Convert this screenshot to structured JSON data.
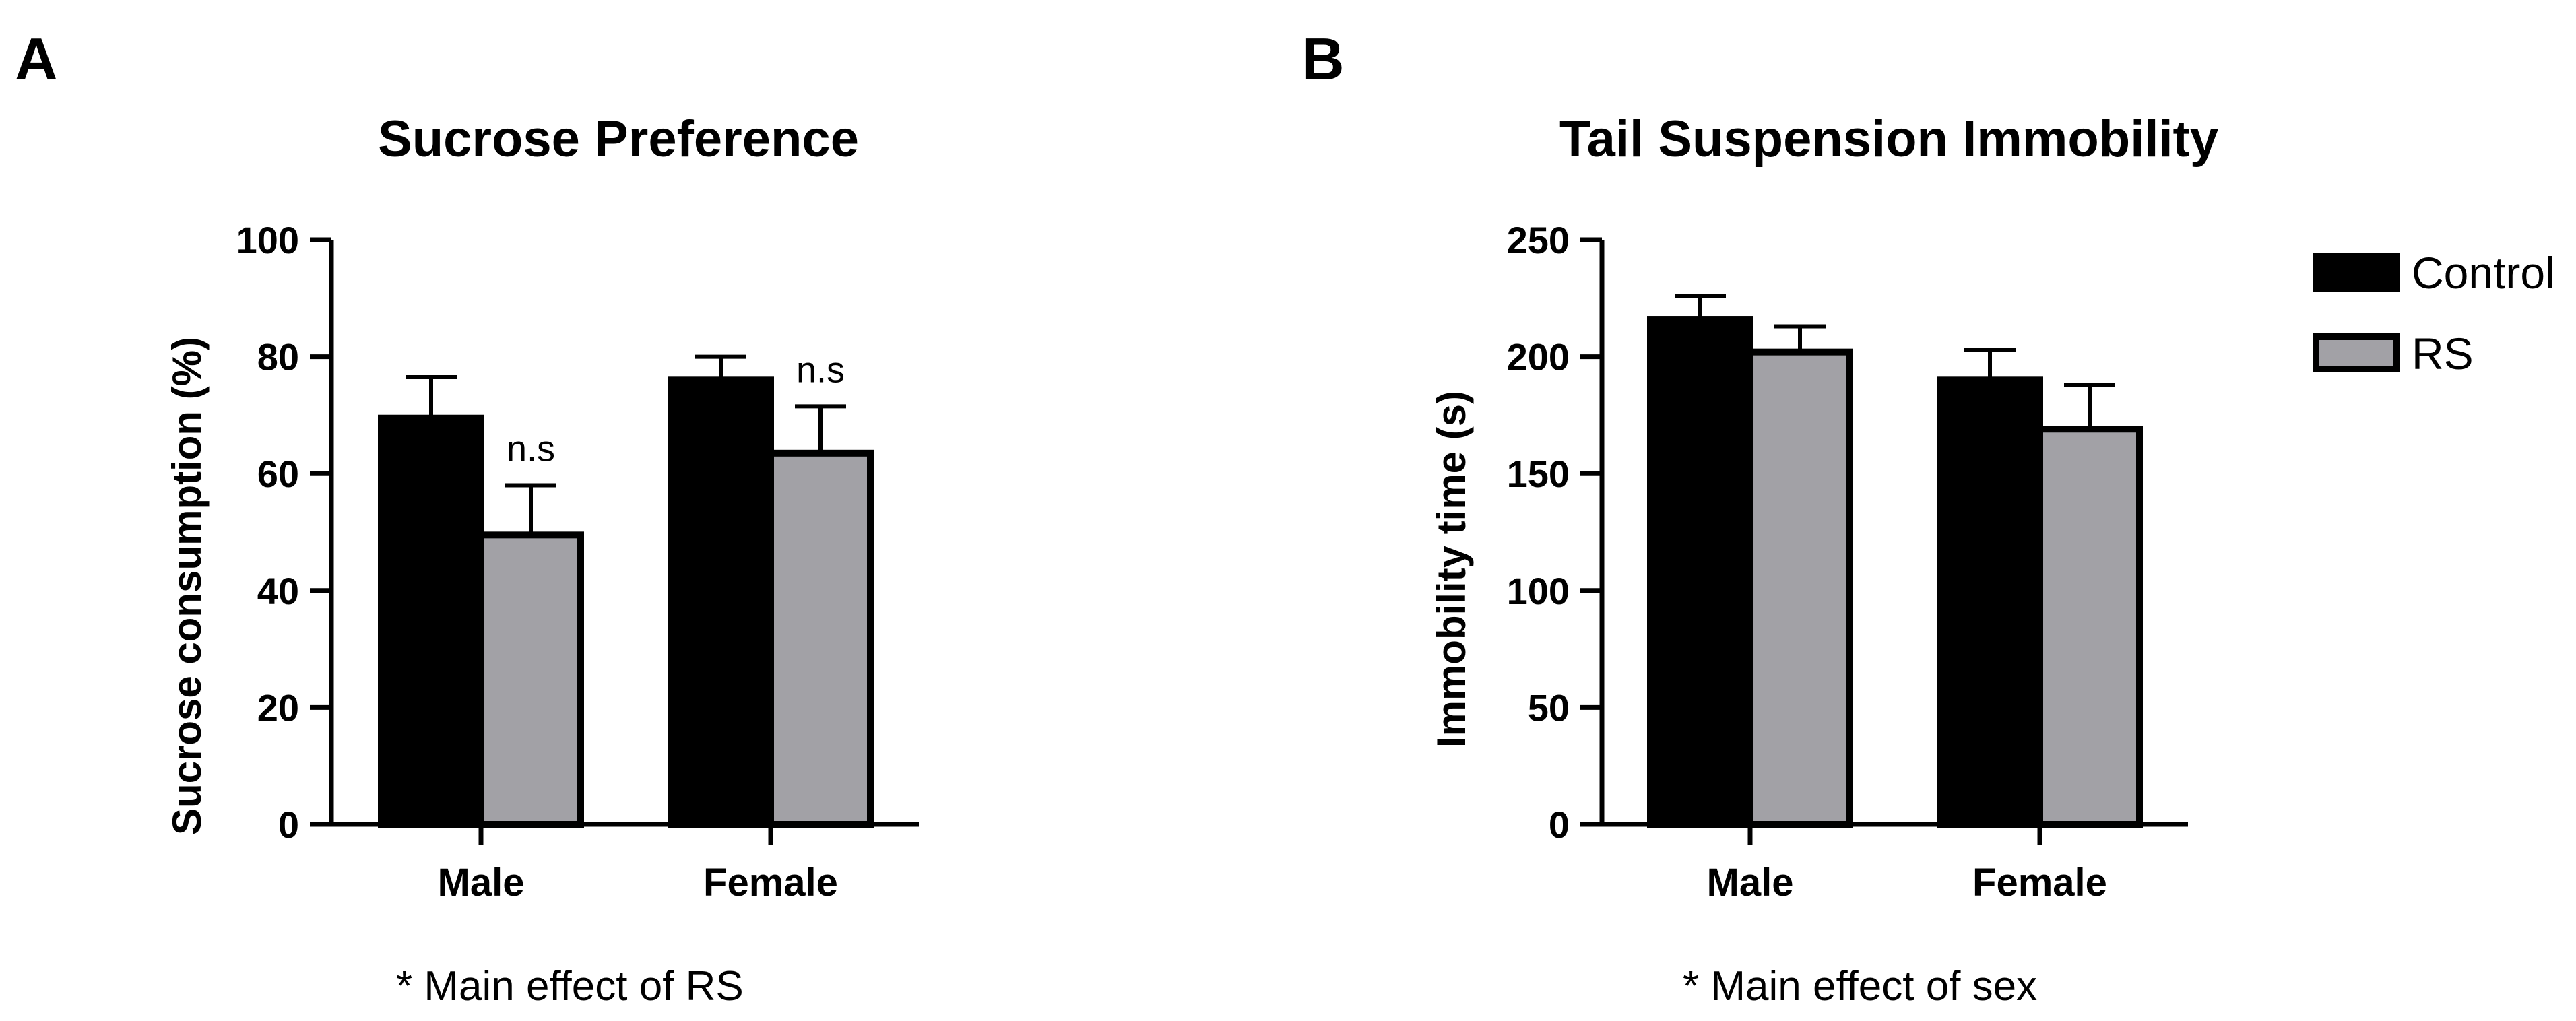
{
  "legend": {
    "items": [
      {
        "label": "Control",
        "color": "#000000"
      },
      {
        "label": "RS",
        "color": "#a2a1a6"
      }
    ]
  },
  "chart_data": [
    {
      "panel": "A",
      "type": "bar",
      "title": "Sucrose Preference",
      "xlabel": "",
      "ylabel": "Sucrose consumption (%)",
      "ylim": [
        0,
        100
      ],
      "yticks": [
        0,
        20,
        40,
        60,
        80,
        100
      ],
      "categories": [
        "Male",
        "Female"
      ],
      "series": [
        {
          "name": "Control",
          "values": [
            69.5,
            76.0
          ],
          "errors": [
            7.0,
            4.0
          ]
        },
        {
          "name": "RS",
          "values": [
            49.5,
            63.5
          ],
          "errors": [
            8.5,
            8.0
          ]
        }
      ],
      "annotations": [
        "n.s",
        "n.s"
      ],
      "footnote": "*  Main effect of RS"
    },
    {
      "panel": "B",
      "type": "bar",
      "title": "Tail Suspension Immobility",
      "xlabel": "",
      "ylabel": "Immobility time (s)",
      "ylim": [
        0,
        250
      ],
      "yticks": [
        0,
        50,
        100,
        150,
        200,
        250
      ],
      "categories": [
        "Male",
        "Female"
      ],
      "series": [
        {
          "name": "Control",
          "values": [
            216,
            190
          ],
          "errors": [
            10,
            13
          ]
        },
        {
          "name": "RS",
          "values": [
            202,
            169
          ],
          "errors": [
            11,
            19
          ]
        }
      ],
      "annotations": [],
      "footnote": "* Main effect of sex"
    }
  ]
}
